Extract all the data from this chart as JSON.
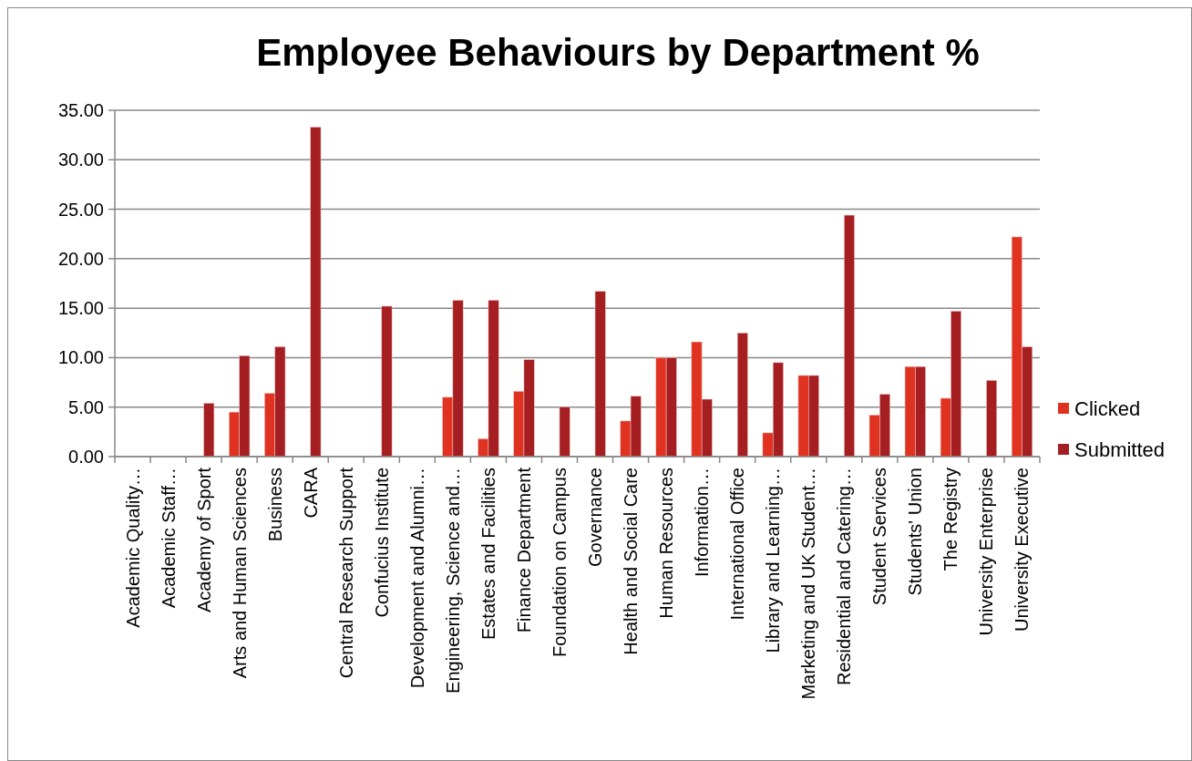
{
  "chart_data": {
    "type": "bar",
    "title": "Employee  Behaviours by Department %",
    "categories": [
      "Academic Quality…",
      "Academic Staff…",
      "Academy of Sport",
      "Arts and Human Sciences",
      "Business",
      "CARA",
      "Central Research Support",
      "Confucius Institute",
      "Development and Alumni…",
      "Engineering, Science and…",
      "Estates and Facilities",
      "Finance Department",
      "Foundation on Campus",
      "Governance",
      "Health and Social Care",
      "Human Resources",
      "Information…",
      "International Office",
      "Library and Learning…",
      "Marketing and UK Student…",
      "Residential and Catering…",
      "Student Services",
      "Students' Union",
      "The Registry",
      "University Enterprise",
      "University Executive"
    ],
    "series": [
      {
        "name": "Clicked",
        "color": "#e03220",
        "values": [
          0,
          0,
          0,
          4.5,
          6.4,
          0,
          0,
          0,
          0,
          6.0,
          1.8,
          6.6,
          0,
          0,
          3.6,
          10.0,
          11.6,
          0,
          2.4,
          8.2,
          0,
          4.2,
          9.1,
          5.9,
          0,
          22.2
        ]
      },
      {
        "name": "Submitted",
        "color": "#a51f22",
        "values": [
          0,
          0,
          5.4,
          10.2,
          11.1,
          33.3,
          0,
          15.2,
          0,
          15.8,
          15.8,
          9.8,
          5.0,
          16.7,
          6.1,
          10.0,
          5.8,
          12.5,
          9.5,
          8.2,
          24.4,
          6.3,
          9.1,
          14.7,
          7.7,
          11.1
        ]
      }
    ],
    "ylim": [
      0,
      35
    ],
    "yticks": [
      {
        "value": 0,
        "label": "0.00"
      },
      {
        "value": 5,
        "label": "5.00"
      },
      {
        "value": 10,
        "label": "10.00"
      },
      {
        "value": 15,
        "label": "15.00"
      },
      {
        "value": 20,
        "label": "20.00"
      },
      {
        "value": 25,
        "label": "25.00"
      },
      {
        "value": 30,
        "label": "30.00"
      },
      {
        "value": 35,
        "label": "35.00"
      }
    ],
    "grid": "y",
    "legend": "right"
  }
}
